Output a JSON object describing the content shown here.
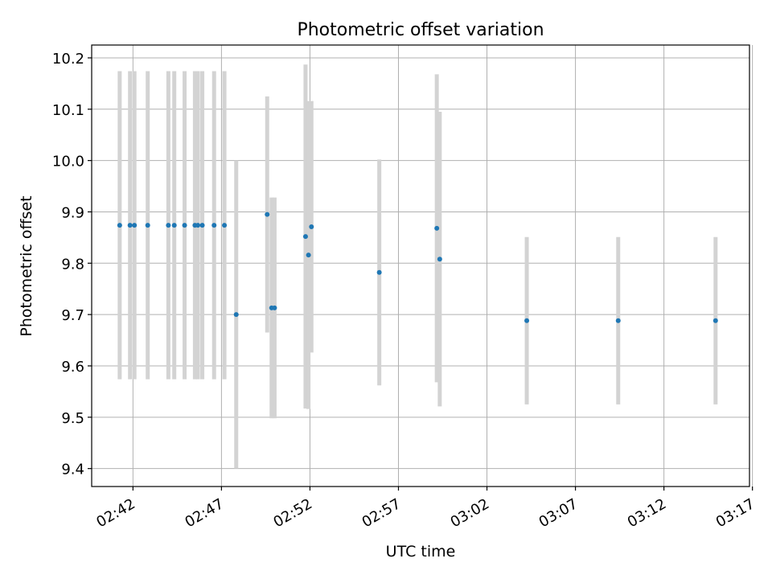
{
  "chart_data": {
    "type": "scatter",
    "title": "Photometric offset variation",
    "xlabel": "UTC time",
    "ylabel": "Photometric offset",
    "x_is_time": true,
    "xlim": [
      "02:39:40",
      "03:16:50"
    ],
    "ylim": [
      9.365,
      10.225
    ],
    "x_ticks": [
      "02:42",
      "02:47",
      "02:52",
      "02:57",
      "03:02",
      "03:07",
      "03:12",
      "03:17"
    ],
    "y_ticks": [
      "9.4",
      "9.5",
      "9.6",
      "9.7",
      "9.8",
      "9.9",
      "10.0",
      "10.1",
      "10.2"
    ],
    "grid": true,
    "colors": {
      "marker": "#1f77b4",
      "errorbar": "#d3d3d3",
      "grid": "#b0b0b0"
    },
    "series": [
      {
        "points": [
          {
            "x": "02:41:15",
            "y": 9.874,
            "err": 0.3
          },
          {
            "x": "02:41:50",
            "y": 9.874,
            "err": 0.3
          },
          {
            "x": "02:42:05",
            "y": 9.874,
            "err": 0.3
          },
          {
            "x": "02:42:50",
            "y": 9.874,
            "err": 0.3
          },
          {
            "x": "02:44:00",
            "y": 9.874,
            "err": 0.3
          },
          {
            "x": "02:44:20",
            "y": 9.874,
            "err": 0.3
          },
          {
            "x": "02:44:55",
            "y": 9.874,
            "err": 0.3
          },
          {
            "x": "02:45:30",
            "y": 9.874,
            "err": 0.3
          },
          {
            "x": "02:45:40",
            "y": 9.874,
            "err": 0.3
          },
          {
            "x": "02:45:55",
            "y": 9.874,
            "err": 0.3
          },
          {
            "x": "02:46:35",
            "y": 9.874,
            "err": 0.3
          },
          {
            "x": "02:47:10",
            "y": 9.874,
            "err": 0.3
          },
          {
            "x": "02:47:50",
            "y": 9.7,
            "err": 0.3
          },
          {
            "x": "02:49:35",
            "y": 9.895,
            "err": 0.23
          },
          {
            "x": "02:49:50",
            "y": 9.713,
            "err": 0.215
          },
          {
            "x": "02:50:00",
            "y": 9.713,
            "err": 0.215
          },
          {
            "x": "02:51:45",
            "y": 9.852,
            "err": 0.335
          },
          {
            "x": "02:51:55",
            "y": 9.816,
            "err": 0.3
          },
          {
            "x": "02:52:05",
            "y": 9.871,
            "err": 0.245
          },
          {
            "x": "02:55:55",
            "y": 9.782,
            "err": 0.22
          },
          {
            "x": "02:59:10",
            "y": 9.868,
            "err": 0.3
          },
          {
            "x": "02:59:20",
            "y": 9.808,
            "err": 0.287
          },
          {
            "x": "03:04:15",
            "y": 9.688,
            "err": 0.163
          },
          {
            "x": "03:09:25",
            "y": 9.688,
            "err": 0.163
          },
          {
            "x": "03:14:55",
            "y": 9.688,
            "err": 0.163
          }
        ]
      }
    ]
  }
}
